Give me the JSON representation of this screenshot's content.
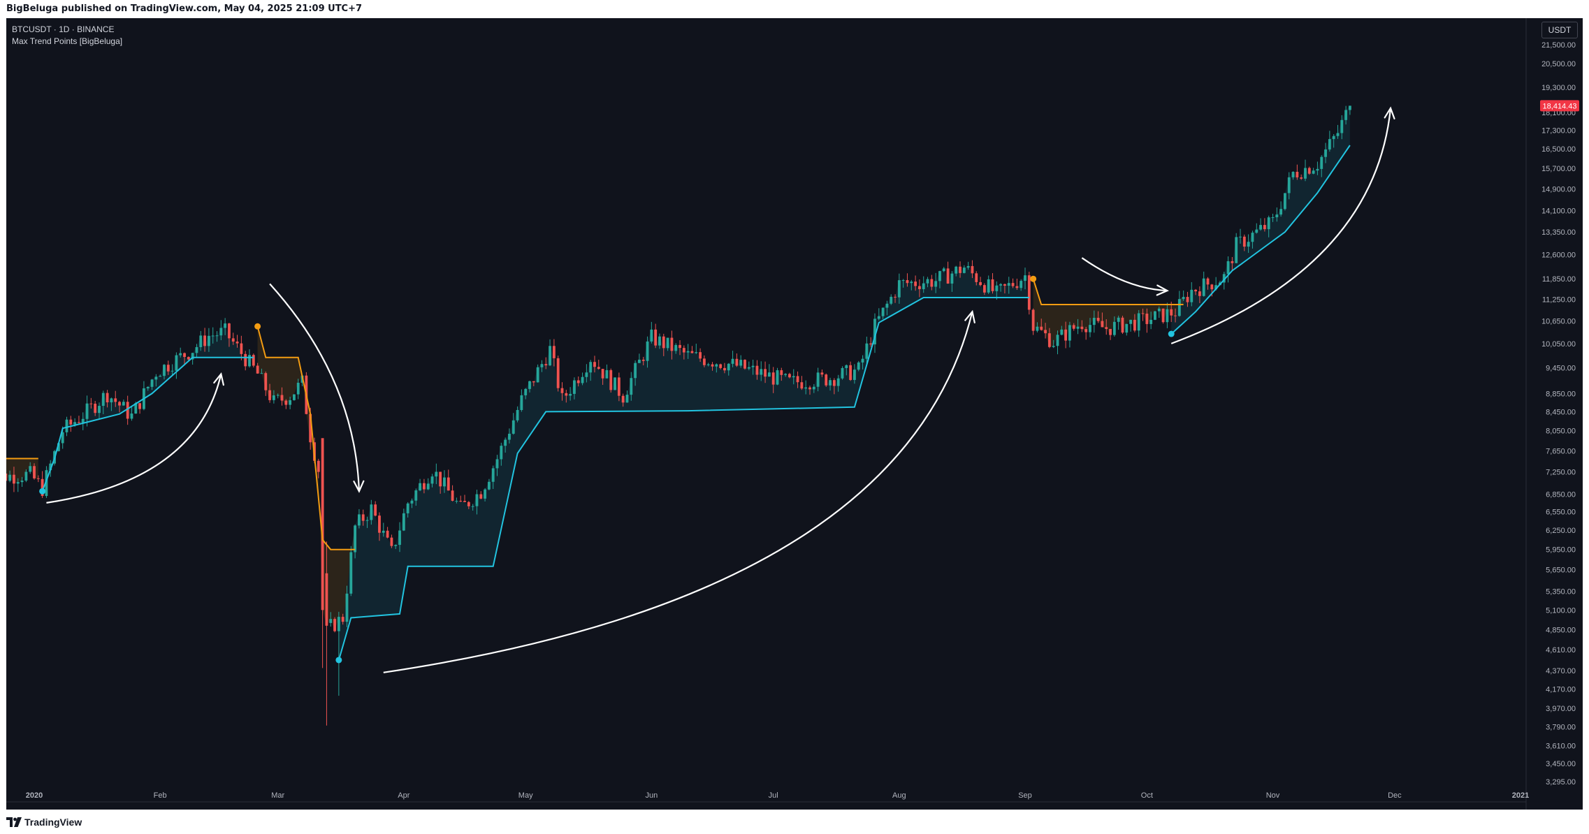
{
  "header": {
    "published_text": "BigBeluga published on TradingView.com, May 04, 2025 21:09 UTC+7"
  },
  "legend": {
    "symbol_line": "BTCUSDT · 1D · BINANCE",
    "indicator_line": "Max Trend Points [BigBeluga]"
  },
  "currency_button": "USDT",
  "footer": {
    "brand": "TradingView"
  },
  "colors": {
    "background": "#10131c",
    "bull_candle": "#26a69a",
    "bear_candle": "#ef5350",
    "trend_up": "#22c4e0",
    "trend_down": "#f39c12",
    "arrow": "#ffffff",
    "price_badge": "#f23645"
  },
  "chart_data": {
    "type": "candlestick",
    "symbol": "BTCUSDT",
    "interval": "1D",
    "exchange": "BINANCE",
    "y_scale": "log",
    "ylim": [
      3200,
      22000
    ],
    "y_ticks": [
      "21,500.00",
      "20,500.00",
      "19,300.00",
      "18,100.00",
      "17,300.00",
      "16,500.00",
      "15,700.00",
      "14,900.00",
      "14,100.00",
      "13,350.00",
      "12,600.00",
      "11,850.00",
      "11,250.00",
      "10,650.00",
      "10,050.00",
      "9,450.00",
      "8,850.00",
      "8,450.00",
      "8,050.00",
      "7,650.00",
      "7,250.00",
      "6,850.00",
      "6,550.00",
      "6,250.00",
      "5,950.00",
      "5,650.00",
      "5,350.00",
      "5,100.00",
      "4,850.00",
      "4,610.00",
      "4,370.00",
      "4,170.00",
      "3,970.00",
      "3,790.00",
      "3,610.00",
      "3,450.00",
      "3,295.00"
    ],
    "x_ticks": [
      "2020",
      "Feb",
      "Mar",
      "Apr",
      "May",
      "Jun",
      "Jul",
      "Aug",
      "Sep",
      "Oct",
      "Nov",
      "Dec",
      "2021"
    ],
    "x_tick_dates": [
      "2020-01-01",
      "2020-02-01",
      "2020-03-01",
      "2020-04-01",
      "2020-05-01",
      "2020-06-01",
      "2020-07-01",
      "2020-08-01",
      "2020-09-01",
      "2020-10-01",
      "2020-11-01",
      "2020-12-01",
      "2021-01-01"
    ],
    "last_price_label": "18,414.43",
    "price_keyframes": [
      [
        "2019-12-20",
        7150
      ],
      [
        "2019-12-31",
        7200
      ],
      [
        "2020-01-03",
        6950
      ],
      [
        "2020-01-08",
        8050
      ],
      [
        "2020-01-14",
        8450
      ],
      [
        "2020-01-19",
        8850
      ],
      [
        "2020-01-25",
        8350
      ],
      [
        "2020-01-31",
        9350
      ],
      [
        "2020-02-09",
        9900
      ],
      [
        "2020-02-13",
        10250
      ],
      [
        "2020-02-17",
        10350
      ],
      [
        "2020-02-25",
        9300
      ],
      [
        "2020-02-29",
        8650
      ],
      [
        "2020-03-04",
        8800
      ],
      [
        "2020-03-07",
        9100
      ],
      [
        "2020-03-09",
        7950
      ],
      [
        "2020-03-11",
        7300
      ],
      [
        "2020-03-13",
        4850
      ],
      [
        "2020-03-17",
        5000
      ],
      [
        "2020-03-20",
        6300
      ],
      [
        "2020-03-24",
        6600
      ],
      [
        "2020-03-29",
        5900
      ],
      [
        "2020-04-02",
        6700
      ],
      [
        "2020-04-08",
        7300
      ],
      [
        "2020-04-15",
        6600
      ],
      [
        "2020-04-20",
        6900
      ],
      [
        "2020-04-24",
        7500
      ],
      [
        "2020-04-30",
        8700
      ],
      [
        "2020-05-07",
        9900
      ],
      [
        "2020-05-10",
        8700
      ],
      [
        "2020-05-17",
        9700
      ],
      [
        "2020-05-25",
        8800
      ],
      [
        "2020-06-01",
        10200
      ],
      [
        "2020-06-10",
        9750
      ],
      [
        "2020-06-22",
        9500
      ],
      [
        "2020-07-05",
        9100
      ],
      [
        "2020-07-15",
        9200
      ],
      [
        "2020-07-22",
        9400
      ],
      [
        "2020-07-26",
        10500
      ],
      [
        "2020-08-01",
        11700
      ],
      [
        "2020-08-10",
        11800
      ],
      [
        "2020-08-17",
        12200
      ],
      [
        "2020-08-25",
        11400
      ],
      [
        "2020-09-01",
        11950
      ],
      [
        "2020-09-03",
        10500
      ],
      [
        "2020-09-08",
        10100
      ],
      [
        "2020-09-15",
        10600
      ],
      [
        "2020-09-21",
        10450
      ],
      [
        "2020-09-30",
        10650
      ],
      [
        "2020-10-08",
        10900
      ],
      [
        "2020-10-12",
        11500
      ],
      [
        "2020-10-20",
        11900
      ],
      [
        "2020-10-23",
        12900
      ],
      [
        "2020-11-01",
        13700
      ],
      [
        "2020-11-06",
        15500
      ],
      [
        "2020-11-12",
        15900
      ],
      [
        "2020-11-17",
        17200
      ],
      [
        "2020-11-20",
        18414
      ]
    ],
    "trend_line": [
      [
        "2019-12-20",
        7500,
        "down"
      ],
      [
        "2020-01-02",
        7500,
        "down"
      ],
      [
        "2020-01-03",
        6900,
        "up"
      ],
      [
        "2020-01-06",
        7500,
        "up"
      ],
      [
        "2020-01-08",
        8100,
        "up"
      ],
      [
        "2020-01-22",
        8400,
        "up"
      ],
      [
        "2020-01-30",
        8850,
        "up"
      ],
      [
        "2020-02-09",
        9700,
        "up"
      ],
      [
        "2020-02-24",
        9700,
        "up"
      ],
      [
        "2020-02-25",
        10500,
        "down"
      ],
      [
        "2020-02-27",
        9700,
        "down"
      ],
      [
        "2020-03-06",
        9700,
        "down"
      ],
      [
        "2020-03-09",
        8400,
        "down"
      ],
      [
        "2020-03-12",
        6100,
        "down"
      ],
      [
        "2020-03-14",
        5950,
        "down"
      ],
      [
        "2020-03-20",
        5950,
        "down"
      ],
      [
        "2020-03-16",
        4490,
        "up"
      ],
      [
        "2020-03-19",
        5000,
        "up"
      ],
      [
        "2020-03-31",
        5050,
        "up"
      ],
      [
        "2020-04-02",
        5700,
        "up"
      ],
      [
        "2020-04-23",
        5700,
        "up"
      ],
      [
        "2020-04-29",
        7600,
        "up"
      ],
      [
        "2020-05-06",
        8450,
        "up"
      ],
      [
        "2020-06-10",
        8470,
        "up"
      ],
      [
        "2020-07-21",
        8550,
        "up"
      ],
      [
        "2020-07-27",
        10600,
        "up"
      ],
      [
        "2020-08-07",
        11300,
        "up"
      ],
      [
        "2020-09-02",
        11300,
        "up"
      ],
      [
        "2020-09-03",
        11850,
        "down"
      ],
      [
        "2020-09-05",
        11100,
        "down"
      ],
      [
        "2020-10-10",
        11100,
        "down"
      ],
      [
        "2020-10-07",
        10300,
        "up"
      ],
      [
        "2020-10-13",
        10900,
        "up"
      ],
      [
        "2020-10-22",
        12100,
        "up"
      ],
      [
        "2020-11-04",
        13350,
        "up"
      ],
      [
        "2020-11-12",
        14750,
        "up"
      ],
      [
        "2020-11-20",
        16650,
        "up"
      ]
    ],
    "trend_dots": [
      {
        "date": "2020-01-03",
        "price": 6900,
        "kind": "up"
      },
      {
        "date": "2020-02-25",
        "price": 10500,
        "kind": "down"
      },
      {
        "date": "2020-03-16",
        "price": 4490,
        "kind": "up"
      },
      {
        "date": "2020-09-03",
        "price": 11850,
        "kind": "down"
      },
      {
        "date": "2020-10-07",
        "price": 10300,
        "kind": "up"
      }
    ],
    "annotations": [
      {
        "type": "arrow",
        "from": [
          "2020-01-04",
          6700
        ],
        "ctrl": [
          "2020-02-10",
          7100
        ],
        "to": [
          "2020-02-16",
          9300
        ]
      },
      {
        "type": "arrow",
        "from": [
          "2020-02-28",
          11700
        ],
        "ctrl": [
          "2020-03-20",
          9200
        ],
        "to": [
          "2020-03-21",
          6900
        ]
      },
      {
        "type": "arrow",
        "from": [
          "2020-03-27",
          4350
        ],
        "ctrl": [
          "2020-08-02",
          5300
        ],
        "to": [
          "2020-08-19",
          10900
        ]
      },
      {
        "type": "arrow",
        "from": [
          "2020-09-15",
          12500
        ],
        "ctrl": [
          "2020-09-26",
          11550
        ],
        "to": [
          "2020-10-06",
          11500
        ]
      },
      {
        "type": "arrow",
        "from": [
          "2020-10-07",
          10050
        ],
        "ctrl": [
          "2020-11-26",
          12200
        ],
        "to": [
          "2020-11-30",
          18300
        ]
      }
    ]
  }
}
